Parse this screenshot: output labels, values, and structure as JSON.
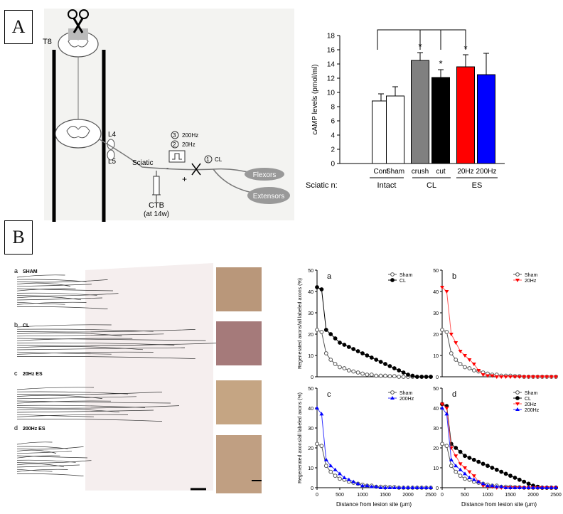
{
  "panels": {
    "a_label": "A",
    "b_label": "B"
  },
  "diagram": {
    "t8": "T8",
    "l4": "L4",
    "l5": "L5",
    "sciatic": "Sciatic",
    "step3": "3",
    "hz200": "200Hz",
    "step2": "2",
    "hz20": "20Hz",
    "step1": "1",
    "cl": "CL",
    "minus": "-",
    "plus": "+",
    "ctb": "CTB",
    "ctb_time": "(at 14w)",
    "flexors": "Flexors",
    "extensors": "Extensors"
  },
  "histo": {
    "a": "a",
    "a_name": "SHAM",
    "b": "b",
    "b_name": "CL",
    "c": "c",
    "c_name": "20Hz ES",
    "d": "d",
    "d_name": "200Hz ES"
  },
  "colors": {
    "cl": "#000000",
    "crush": "#808080",
    "hz20": "#ff0000",
    "hz200": "#0000ff",
    "sham": "#ffffff"
  },
  "chart_data": [
    {
      "type": "bar",
      "ylabel": "cAMP levels (pmol/ml)",
      "ylim": [
        0,
        18
      ],
      "yticks": [
        0,
        2,
        4,
        6,
        8,
        10,
        12,
        14,
        16,
        18
      ],
      "categories": [
        "Cont",
        "Sham",
        "crush",
        "cut",
        "20Hz",
        "200Hz"
      ],
      "values": [
        8.8,
        9.5,
        14.5,
        12.1,
        13.6,
        12.5
      ],
      "errors": [
        1.0,
        1.3,
        1.1,
        1.1,
        1.7,
        3.0
      ],
      "significance": [
        "",
        "",
        "*",
        "*",
        "*",
        ""
      ],
      "group_row_label": "Sciatic n:",
      "groups": [
        "Intact",
        "CL",
        "ES"
      ],
      "grid": false
    },
    {
      "type": "line",
      "panel": "a",
      "ylabel": "Regenerated axons/all labeled axons (%)",
      "ylim": [
        0,
        50
      ],
      "yticks": [
        0,
        10,
        20,
        30,
        40,
        50
      ],
      "xlim": [
        0,
        2500
      ],
      "xticks": [
        0,
        500,
        1000,
        1500,
        2000,
        2500
      ],
      "legend": "top-right",
      "series": [
        {
          "name": "Sham",
          "x": [
            0,
            100,
            200,
            300,
            400,
            500,
            600,
            700,
            800,
            900,
            1000,
            1100,
            1200,
            1300,
            1400,
            1500,
            1600,
            1700,
            1800,
            1900,
            2000,
            2100,
            2200,
            2300,
            2400,
            2500
          ],
          "y": [
            22,
            21,
            11,
            8,
            6,
            4.5,
            4,
            3,
            2.5,
            2,
            1.5,
            1,
            1,
            0.5,
            0.5,
            0.5,
            0.3,
            0.3,
            0,
            0,
            0,
            0,
            0,
            0,
            0,
            0
          ]
        },
        {
          "name": "CL",
          "x": [
            0,
            100,
            200,
            300,
            400,
            500,
            600,
            700,
            800,
            900,
            1000,
            1100,
            1200,
            1300,
            1400,
            1500,
            1600,
            1700,
            1800,
            1900,
            2000,
            2100,
            2200,
            2300,
            2400,
            2500
          ],
          "y": [
            42,
            41,
            22,
            20,
            18,
            16,
            15,
            14,
            13,
            12,
            11,
            10,
            9,
            8,
            7,
            6,
            5,
            4,
            3,
            2,
            1,
            0.5,
            0,
            0,
            0,
            0
          ]
        }
      ]
    },
    {
      "type": "line",
      "panel": "b",
      "ylim": [
        0,
        50
      ],
      "yticks": [
        0,
        10,
        20,
        30,
        40,
        50
      ],
      "xlim": [
        0,
        2500
      ],
      "xticks": [
        0,
        500,
        1000,
        1500,
        2000,
        2500
      ],
      "legend": "top-right",
      "series": [
        {
          "name": "Sham",
          "x": [
            0,
            100,
            200,
            300,
            400,
            500,
            600,
            700,
            800,
            900,
            1000,
            1100,
            1200,
            1300,
            1400,
            1500,
            1600,
            1700,
            1800,
            1900,
            2000,
            2100,
            2200,
            2300,
            2400,
            2500
          ],
          "y": [
            22,
            21,
            11,
            8,
            6,
            4.5,
            4,
            3,
            2.5,
            2,
            1.5,
            1,
            1,
            0.5,
            0.5,
            0.5,
            0.3,
            0.3,
            0,
            0,
            0,
            0,
            0,
            0,
            0,
            0
          ]
        },
        {
          "name": "20Hz",
          "x": [
            0,
            100,
            200,
            300,
            400,
            500,
            600,
            700,
            800,
            900,
            1000,
            1100,
            1200,
            1300,
            1400,
            1500,
            1600,
            1700,
            1800,
            1900,
            2000,
            2100,
            2200,
            2300,
            2400,
            2500
          ],
          "y": [
            42,
            40,
            20,
            16,
            12,
            10,
            8,
            6,
            3,
            1,
            0.5,
            0.5,
            0,
            0,
            0,
            0,
            0,
            0,
            0,
            0,
            0,
            0,
            0,
            0,
            0,
            0
          ]
        }
      ]
    },
    {
      "type": "line",
      "panel": "c",
      "xlabel": "Distance from lesion site (μm)",
      "ylabel": "Regenerated axons/all labeled axons (%)",
      "ylim": [
        0,
        50
      ],
      "yticks": [
        0,
        10,
        20,
        30,
        40,
        50
      ],
      "xlim": [
        0,
        2500
      ],
      "xticks": [
        0,
        500,
        1000,
        1500,
        2000,
        2500
      ],
      "legend": "top-right",
      "series": [
        {
          "name": "Sham",
          "x": [
            0,
            100,
            200,
            300,
            400,
            500,
            600,
            700,
            800,
            900,
            1000,
            1100,
            1200,
            1300,
            1400,
            1500,
            1600,
            1700,
            1800,
            1900,
            2000,
            2100,
            2200,
            2300,
            2400,
            2500
          ],
          "y": [
            22,
            21,
            11,
            8,
            6,
            4.5,
            4,
            3,
            2.5,
            2,
            1.5,
            1,
            1,
            0.5,
            0.5,
            0.5,
            0.3,
            0.3,
            0,
            0,
            0,
            0,
            0,
            0,
            0,
            0
          ]
        },
        {
          "name": "200Hz",
          "x": [
            0,
            100,
            200,
            300,
            400,
            500,
            600,
            700,
            800,
            900,
            1000,
            1100,
            1200,
            1300,
            1400,
            1500,
            1600,
            1700,
            1800,
            1900,
            2000,
            2100,
            2200,
            2300,
            2400,
            2500
          ],
          "y": [
            40,
            37,
            14,
            11,
            9,
            7,
            5,
            4,
            3,
            2,
            1,
            1,
            0.5,
            0.5,
            0,
            0,
            0,
            0,
            0,
            0,
            0,
            0,
            0,
            0,
            0,
            0
          ]
        }
      ]
    },
    {
      "type": "line",
      "panel": "d",
      "xlabel": "Distance from lesion site (μm)",
      "ylim": [
        0,
        50
      ],
      "yticks": [
        0,
        10,
        20,
        30,
        40,
        50
      ],
      "xlim": [
        0,
        2500
      ],
      "xticks": [
        0,
        500,
        1000,
        1500,
        2000,
        2500
      ],
      "legend": "top-right",
      "series": [
        {
          "name": "Sham",
          "x": [
            0,
            100,
            200,
            300,
            400,
            500,
            600,
            700,
            800,
            900,
            1000,
            1100,
            1200,
            1300,
            1400,
            1500,
            1600,
            1700,
            1800,
            1900,
            2000,
            2100,
            2200,
            2300,
            2400,
            2500
          ],
          "y": [
            22,
            21,
            11,
            8,
            6,
            4.5,
            4,
            3,
            2.5,
            2,
            1.5,
            1,
            1,
            0.5,
            0.5,
            0.5,
            0.3,
            0.3,
            0,
            0,
            0,
            0,
            0,
            0,
            0,
            0
          ]
        },
        {
          "name": "CL",
          "x": [
            0,
            100,
            200,
            300,
            400,
            500,
            600,
            700,
            800,
            900,
            1000,
            1100,
            1200,
            1300,
            1400,
            1500,
            1600,
            1700,
            1800,
            1900,
            2000,
            2100,
            2200,
            2300,
            2400,
            2500
          ],
          "y": [
            42,
            41,
            22,
            20,
            18,
            16,
            15,
            14,
            13,
            12,
            11,
            10,
            9,
            8,
            7,
            6,
            5,
            4,
            3,
            2,
            1,
            0.5,
            0,
            0,
            0,
            0
          ]
        },
        {
          "name": "20Hz",
          "x": [
            0,
            100,
            200,
            300,
            400,
            500,
            600,
            700,
            800,
            900,
            1000,
            1100,
            1200,
            1300,
            1400,
            1500,
            1600,
            1700,
            1800,
            1900,
            2000,
            2100,
            2200,
            2300,
            2400,
            2500
          ],
          "y": [
            42,
            40,
            20,
            16,
            12,
            10,
            8,
            6,
            3,
            1,
            0.5,
            0.5,
            0,
            0,
            0,
            0,
            0,
            0,
            0,
            0,
            0,
            0,
            0,
            0,
            0,
            0
          ]
        },
        {
          "name": "200Hz",
          "x": [
            0,
            100,
            200,
            300,
            400,
            500,
            600,
            700,
            800,
            900,
            1000,
            1100,
            1200,
            1300,
            1400,
            1500,
            1600,
            1700,
            1800,
            1900,
            2000,
            2100,
            2200,
            2300,
            2400,
            2500
          ],
          "y": [
            40,
            37,
            14,
            11,
            9,
            7,
            5,
            4,
            3,
            2,
            1,
            1,
            0.5,
            0.5,
            0,
            0,
            0,
            0,
            0,
            0,
            0,
            0,
            0,
            0,
            0,
            0
          ]
        }
      ]
    }
  ]
}
